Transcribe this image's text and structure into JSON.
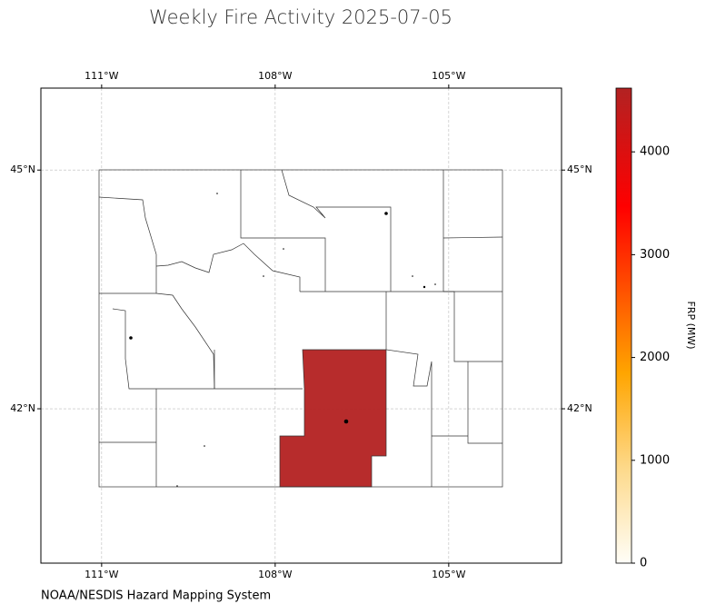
{
  "title": "Weekly Fire Activity 2025-07-05",
  "map": {
    "xlim": [
      -112.05,
      -103.05
    ],
    "ylim": [
      40.06,
      46.03
    ],
    "xticks": [
      {
        "value": -111,
        "label": "111°W"
      },
      {
        "value": -108,
        "label": "108°W"
      },
      {
        "value": -105,
        "label": "105°W"
      }
    ],
    "yticks": [
      {
        "value": 45,
        "label": "45°N"
      },
      {
        "value": 42,
        "label": "42°N"
      }
    ],
    "grid": true,
    "highlight_frp": 4600
  },
  "colorbar": {
    "label": "FRP (MW)",
    "lim": [
      0,
      4620
    ],
    "ticks": [
      0,
      1000,
      2000,
      3000,
      4000
    ]
  },
  "source": "NOAA/NESDIS Hazard Mapping System"
}
